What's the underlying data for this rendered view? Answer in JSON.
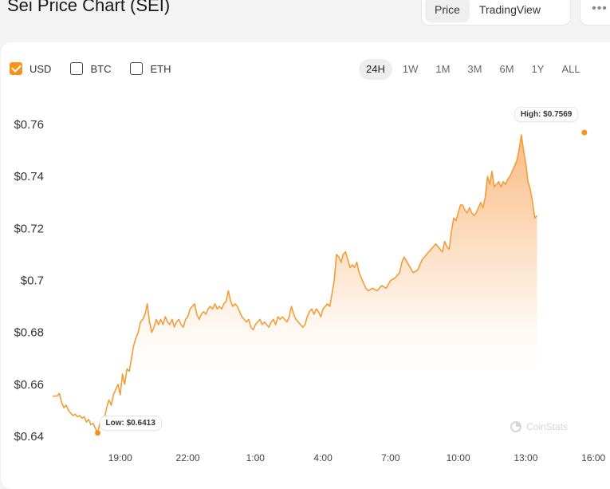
{
  "header": {
    "title": "Sei Price Chart (SEI)",
    "views": [
      "Price",
      "TradingView"
    ],
    "active_view": "Price",
    "more_label": "•••"
  },
  "currencies": [
    {
      "label": "USD",
      "checked": true
    },
    {
      "label": "BTC",
      "checked": false
    },
    {
      "label": "ETH",
      "checked": false
    }
  ],
  "ranges": [
    "24H",
    "1W",
    "1M",
    "3M",
    "6M",
    "1Y",
    "ALL"
  ],
  "active_range": "24H",
  "watermark": "CoinStats",
  "colors": {
    "accent": "#f7931a",
    "line": "#f29d38",
    "area_top": "#f9a55a"
  },
  "chart_data": {
    "type": "area",
    "title": "",
    "xlabel": "",
    "ylabel": "",
    "ylim": [
      0.636,
      0.768
    ],
    "y_ticks": [
      0.64,
      0.66,
      0.68,
      0.7,
      0.72,
      0.74,
      0.76
    ],
    "y_tick_labels": [
      "$0.64",
      "$0.66",
      "$0.68",
      "$0.7",
      "$0.72",
      "$0.74",
      "$0.76"
    ],
    "x_ticks": [
      "19:00",
      "22:00",
      "1:00",
      "4:00",
      "7:00",
      "10:00",
      "13:00",
      "16:00"
    ],
    "x_tick_positions": [
      19,
      22,
      25,
      28,
      31,
      34,
      37,
      40
    ],
    "xlim": [
      16.0,
      40.1
    ],
    "grid": false,
    "legend": "none",
    "high": {
      "label": "High: $0.7569",
      "x": 39.6,
      "y": 0.7569
    },
    "low": {
      "label": "Low: $0.6413",
      "x": 18.0,
      "y": 0.6413
    },
    "series": [
      {
        "values": [
          [
            16.0,
            0.6555
          ],
          [
            16.2,
            0.6555
          ],
          [
            16.3,
            0.6565
          ],
          [
            16.4,
            0.653
          ],
          [
            16.5,
            0.651
          ],
          [
            16.6,
            0.652
          ],
          [
            16.7,
            0.65
          ],
          [
            16.8,
            0.649
          ],
          [
            16.9,
            0.648
          ],
          [
            17.0,
            0.6485
          ],
          [
            17.1,
            0.6475
          ],
          [
            17.2,
            0.648
          ],
          [
            17.3,
            0.647
          ],
          [
            17.4,
            0.6475
          ],
          [
            17.5,
            0.6455
          ],
          [
            17.6,
            0.6465
          ],
          [
            17.7,
            0.6445
          ],
          [
            17.8,
            0.645
          ],
          [
            17.9,
            0.643
          ],
          [
            18.0,
            0.6413
          ],
          [
            18.1,
            0.645
          ],
          [
            18.3,
            0.647
          ],
          [
            18.4,
            0.651
          ],
          [
            18.5,
            0.654
          ],
          [
            18.6,
            0.652
          ],
          [
            18.7,
            0.656
          ],
          [
            18.8,
            0.658
          ],
          [
            18.9,
            0.66
          ],
          [
            19.0,
            0.656
          ],
          [
            19.1,
            0.664
          ],
          [
            19.2,
            0.66
          ],
          [
            19.3,
            0.666
          ],
          [
            19.4,
            0.665
          ],
          [
            19.5,
            0.67
          ],
          [
            19.6,
            0.675
          ],
          [
            19.7,
            0.678
          ],
          [
            19.8,
            0.68
          ],
          [
            19.9,
            0.684
          ],
          [
            20.0,
            0.685
          ],
          [
            20.1,
            0.687
          ],
          [
            20.2,
            0.691
          ],
          [
            20.3,
            0.684
          ],
          [
            20.4,
            0.68
          ],
          [
            20.5,
            0.682
          ],
          [
            20.6,
            0.685
          ],
          [
            20.7,
            0.683
          ],
          [
            20.8,
            0.685
          ],
          [
            20.9,
            0.683
          ],
          [
            21.0,
            0.686
          ],
          [
            21.1,
            0.684
          ],
          [
            21.2,
            0.683
          ],
          [
            21.3,
            0.685
          ],
          [
            21.4,
            0.682
          ],
          [
            21.5,
            0.684
          ],
          [
            21.6,
            0.685
          ],
          [
            21.7,
            0.683
          ],
          [
            21.8,
            0.682
          ],
          [
            21.9,
            0.685
          ],
          [
            22.0,
            0.686
          ],
          [
            22.1,
            0.689
          ],
          [
            22.2,
            0.69
          ],
          [
            22.3,
            0.691
          ],
          [
            22.4,
            0.687
          ],
          [
            22.5,
            0.685
          ],
          [
            22.6,
            0.687
          ],
          [
            22.7,
            0.688
          ],
          [
            22.8,
            0.687
          ],
          [
            22.9,
            0.689
          ],
          [
            23.0,
            0.69
          ],
          [
            23.1,
            0.689
          ],
          [
            23.2,
            0.691
          ],
          [
            23.3,
            0.689
          ],
          [
            23.4,
            0.69
          ],
          [
            23.5,
            0.689
          ],
          [
            23.6,
            0.691
          ],
          [
            23.7,
            0.692
          ],
          [
            23.8,
            0.696
          ],
          [
            23.9,
            0.692
          ],
          [
            24.0,
            0.69
          ],
          [
            24.1,
            0.691
          ],
          [
            24.2,
            0.69
          ],
          [
            24.3,
            0.688
          ],
          [
            24.4,
            0.686
          ],
          [
            24.5,
            0.685
          ],
          [
            24.6,
            0.684
          ],
          [
            24.7,
            0.685
          ],
          [
            24.8,
            0.682
          ],
          [
            24.9,
            0.681
          ],
          [
            25.0,
            0.683
          ],
          [
            25.1,
            0.684
          ],
          [
            25.2,
            0.685
          ],
          [
            25.3,
            0.683
          ],
          [
            25.4,
            0.684
          ],
          [
            25.5,
            0.683
          ],
          [
            25.6,
            0.682
          ],
          [
            25.7,
            0.684
          ],
          [
            25.8,
            0.685
          ],
          [
            25.9,
            0.683
          ],
          [
            26.0,
            0.686
          ],
          [
            26.1,
            0.685
          ],
          [
            26.2,
            0.686
          ],
          [
            26.3,
            0.685
          ],
          [
            26.4,
            0.684
          ],
          [
            26.5,
            0.686
          ],
          [
            26.6,
            0.69
          ],
          [
            26.7,
            0.687
          ],
          [
            26.8,
            0.685
          ],
          [
            26.9,
            0.684
          ],
          [
            27.0,
            0.683
          ],
          [
            27.1,
            0.682
          ],
          [
            27.2,
            0.683
          ],
          [
            27.3,
            0.686
          ],
          [
            27.4,
            0.688
          ],
          [
            27.5,
            0.689
          ],
          [
            27.6,
            0.687
          ],
          [
            27.7,
            0.689
          ],
          [
            27.8,
            0.688
          ],
          [
            27.9,
            0.686
          ],
          [
            28.0,
            0.689
          ],
          [
            28.1,
            0.69
          ],
          [
            28.2,
            0.691
          ],
          [
            28.3,
            0.69
          ],
          [
            28.4,
            0.695
          ],
          [
            28.5,
            0.7
          ],
          [
            28.6,
            0.71
          ],
          [
            28.7,
            0.709
          ],
          [
            28.8,
            0.707
          ],
          [
            28.9,
            0.71
          ],
          [
            29.0,
            0.711
          ],
          [
            29.1,
            0.708
          ],
          [
            29.2,
            0.705
          ],
          [
            29.3,
            0.706
          ],
          [
            29.4,
            0.705
          ],
          [
            29.5,
            0.707
          ],
          [
            29.6,
            0.703
          ],
          [
            29.7,
            0.701
          ],
          [
            29.8,
            0.699
          ],
          [
            29.9,
            0.697
          ],
          [
            30.0,
            0.696
          ],
          [
            30.2,
            0.697
          ],
          [
            30.4,
            0.696
          ],
          [
            30.6,
            0.698
          ],
          [
            30.8,
            0.697
          ],
          [
            31.0,
            0.7
          ],
          [
            31.2,
            0.701
          ],
          [
            31.4,
            0.703
          ],
          [
            31.5,
            0.707
          ],
          [
            31.6,
            0.709
          ],
          [
            31.8,
            0.706
          ],
          [
            32.0,
            0.703
          ],
          [
            32.2,
            0.704
          ],
          [
            32.4,
            0.708
          ],
          [
            32.6,
            0.71
          ],
          [
            32.8,
            0.712
          ],
          [
            33.0,
            0.714
          ],
          [
            33.2,
            0.712
          ],
          [
            33.3,
            0.711
          ],
          [
            33.4,
            0.715
          ],
          [
            33.5,
            0.713
          ],
          [
            33.6,
            0.712
          ],
          [
            33.7,
            0.719
          ],
          [
            33.8,
            0.724
          ],
          [
            33.9,
            0.723
          ],
          [
            34.0,
            0.726
          ],
          [
            34.1,
            0.729
          ],
          [
            34.2,
            0.729
          ],
          [
            34.3,
            0.727
          ],
          [
            34.4,
            0.726
          ],
          [
            34.5,
            0.728
          ],
          [
            34.6,
            0.726
          ],
          [
            34.7,
            0.725
          ],
          [
            34.8,
            0.726
          ],
          [
            34.9,
            0.728
          ],
          [
            35.0,
            0.73
          ],
          [
            35.1,
            0.728
          ],
          [
            35.2,
            0.732
          ],
          [
            35.3,
            0.74
          ],
          [
            35.4,
            0.737
          ],
          [
            35.5,
            0.742
          ],
          [
            35.6,
            0.736
          ],
          [
            35.7,
            0.737
          ],
          [
            35.8,
            0.738
          ],
          [
            35.9,
            0.736
          ],
          [
            36.0,
            0.738
          ],
          [
            36.1,
            0.737
          ],
          [
            36.2,
            0.739
          ],
          [
            36.3,
            0.74
          ],
          [
            36.4,
            0.742
          ],
          [
            36.5,
            0.744
          ],
          [
            36.6,
            0.746
          ],
          [
            36.7,
            0.75
          ],
          [
            36.8,
            0.756
          ],
          [
            36.9,
            0.75
          ],
          [
            37.0,
            0.745
          ],
          [
            37.1,
            0.738
          ],
          [
            37.2,
            0.735
          ],
          [
            37.3,
            0.73
          ],
          [
            37.4,
            0.724
          ],
          [
            37.5,
            0.725
          ]
        ]
      }
    ]
  }
}
